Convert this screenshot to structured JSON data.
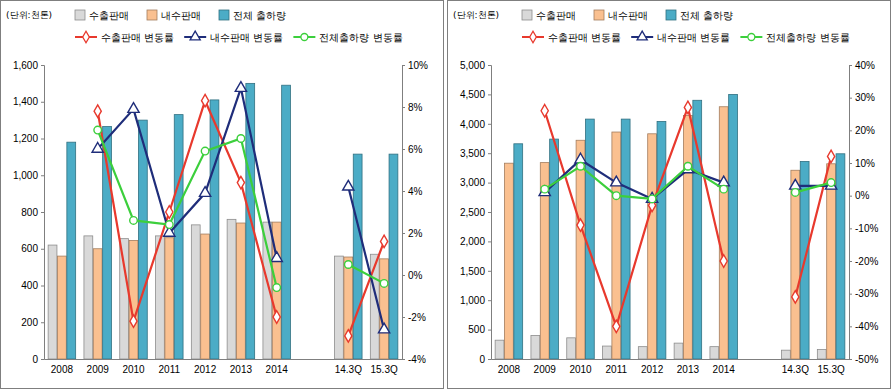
{
  "chart_data": [
    {
      "type": "bar",
      "ylabel": "(단위:천톤)",
      "categories": [
        "2008",
        "2009",
        "2010",
        "2011",
        "2012",
        "2013",
        "2014",
        null,
        "14.3Q",
        "15.3Q"
      ],
      "ylim": [
        0,
        1600
      ],
      "yticks": [
        0,
        200,
        400,
        600,
        800,
        {
          "value": 1000,
          "label": "1,000"
        },
        {
          "value": 1200,
          "label": "1,200"
        },
        {
          "value": 1400,
          "label": "1,400"
        },
        {
          "value": 1600,
          "label": "1,600"
        }
      ],
      "y2lim": [
        -4,
        10
      ],
      "y2ticks": [
        {
          "value": -4,
          "label": "-4%"
        },
        {
          "value": -2,
          "label": "-2%"
        },
        {
          "value": 0,
          "label": "0%"
        },
        {
          "value": 2,
          "label": "2%"
        },
        {
          "value": 4,
          "label": "4%"
        },
        {
          "value": 6,
          "label": "6%"
        },
        {
          "value": 8,
          "label": "8%"
        },
        {
          "value": 10,
          "label": "10%"
        }
      ],
      "series": [
        {
          "name": "수출판매",
          "type": "bar",
          "color": "#d9d9d9",
          "values": [
            620,
            670,
            655,
            670,
            730,
            760,
            745,
            null,
            560,
            570
          ]
        },
        {
          "name": "내수판매",
          "type": "bar",
          "color": "#fac090",
          "values": [
            560,
            600,
            645,
            660,
            680,
            740,
            745,
            null,
            555,
            545
          ]
        },
        {
          "name": "전체 출하량",
          "type": "bar",
          "color": "#4bacc6",
          "values": [
            1180,
            1265,
            1300,
            1330,
            1410,
            1500,
            1490,
            null,
            1115,
            1115
          ]
        },
        {
          "name": "수출판매 변동률",
          "type": "line",
          "axis": "y2",
          "color": "#e8392d",
          "marker": "diamond",
          "values": [
            null,
            7.8,
            -2.2,
            3.0,
            8.3,
            4.4,
            -2.0,
            null,
            -2.9,
            1.6
          ]
        },
        {
          "name": "내수판매 변동률",
          "type": "line",
          "axis": "y2",
          "color": "#1f2d7a",
          "marker": "triangle",
          "values": [
            null,
            6.0,
            7.9,
            2.0,
            3.9,
            8.9,
            0.8,
            null,
            4.2,
            -2.6
          ]
        },
        {
          "name": "전체출하량 변동률",
          "type": "line",
          "axis": "y2",
          "color": "#3ccf3c",
          "marker": "circle",
          "values": [
            null,
            6.9,
            2.6,
            2.4,
            5.9,
            6.5,
            -0.6,
            null,
            0.5,
            -0.4
          ]
        }
      ]
    },
    {
      "type": "bar",
      "ylabel": "(단위:천톤)",
      "categories": [
        "2008",
        "2009",
        "2010",
        "2011",
        "2012",
        "2013",
        "2014",
        null,
        "14.3Q",
        "15.3Q"
      ],
      "ylim": [
        0,
        5000
      ],
      "yticks": [
        0,
        500,
        {
          "value": 1000,
          "label": "1,000"
        },
        {
          "value": 1500,
          "label": "1,500"
        },
        {
          "value": 2000,
          "label": "2,000"
        },
        {
          "value": 2500,
          "label": "2,500"
        },
        {
          "value": 3000,
          "label": "3,000"
        },
        {
          "value": 3500,
          "label": "3,500"
        },
        {
          "value": 4000,
          "label": "4,000"
        },
        {
          "value": 4500,
          "label": "4,500"
        },
        {
          "value": 5000,
          "label": "5,000"
        }
      ],
      "y2lim": [
        -50,
        40
      ],
      "y2ticks": [
        {
          "value": -50,
          "label": "-50%"
        },
        {
          "value": -40,
          "label": "-40%"
        },
        {
          "value": -30,
          "label": "-30%"
        },
        {
          "value": -20,
          "label": "-20%"
        },
        {
          "value": -10,
          "label": "-10%"
        },
        {
          "value": 0,
          "label": "0%"
        },
        {
          "value": 10,
          "label": "10%"
        },
        {
          "value": 20,
          "label": "20%"
        },
        {
          "value": 30,
          "label": "30%"
        },
        {
          "value": 40,
          "label": "40%"
        }
      ],
      "series": [
        {
          "name": "수출판매",
          "type": "bar",
          "color": "#d9d9d9",
          "values": [
            320,
            400,
            360,
            220,
            210,
            270,
            210,
            null,
            150,
            160
          ]
        },
        {
          "name": "내수판매",
          "type": "bar",
          "color": "#fac090",
          "values": [
            3330,
            3340,
            3720,
            3860,
            3830,
            4140,
            4290,
            null,
            3210,
            3320
          ]
        },
        {
          "name": "전체 출하량",
          "type": "bar",
          "color": "#4bacc6",
          "values": [
            3660,
            3740,
            4080,
            4080,
            4040,
            4400,
            4500,
            null,
            3360,
            3490
          ]
        },
        {
          "name": "수출판매 변동률",
          "type": "line",
          "axis": "y2",
          "color": "#e8392d",
          "marker": "diamond",
          "values": [
            null,
            26,
            -9,
            -40,
            -3,
            27,
            -20,
            null,
            -31,
            12
          ]
        },
        {
          "name": "내수판매 변동률",
          "type": "line",
          "axis": "y2",
          "color": "#1f2d7a",
          "marker": "triangle",
          "values": [
            null,
            1,
            11,
            4,
            -1,
            8,
            4,
            null,
            3,
            3
          ]
        },
        {
          "name": "전체출하량 변동률",
          "type": "line",
          "axis": "y2",
          "color": "#3ccf3c",
          "marker": "circle",
          "values": [
            null,
            2,
            9,
            0,
            -1,
            9,
            2,
            null,
            1,
            4
          ]
        }
      ]
    }
  ]
}
